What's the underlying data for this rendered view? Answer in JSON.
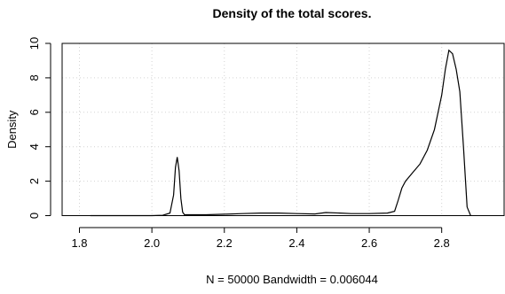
{
  "chart_data": {
    "type": "line",
    "title": "Density of the total scores.",
    "xlabel": "N = 50000   Bandwidth = 0.006044",
    "ylabel": "Density",
    "xlim": [
      1.8,
      2.9
    ],
    "ylim": [
      0,
      10
    ],
    "xticks": [
      "1.8",
      "2.0",
      "2.2",
      "2.4",
      "2.6",
      "2.8"
    ],
    "xtick_values": [
      1.8,
      2.0,
      2.2,
      2.4,
      2.6,
      2.8
    ],
    "yticks": [
      "0",
      "2",
      "4",
      "6",
      "8",
      "10"
    ],
    "ytick_values": [
      0,
      2,
      4,
      6,
      8,
      10
    ],
    "grid": true,
    "series": [
      {
        "x": [
          1.83,
          1.9,
          1.95,
          2.0,
          2.03,
          2.05,
          2.06,
          2.065,
          2.07,
          2.075,
          2.08,
          2.085,
          2.09,
          2.1,
          2.15,
          2.2,
          2.25,
          2.3,
          2.35,
          2.4,
          2.45,
          2.48,
          2.52,
          2.55,
          2.6,
          2.65,
          2.67,
          2.68,
          2.69,
          2.7,
          2.72,
          2.74,
          2.76,
          2.78,
          2.8,
          2.81,
          2.82,
          2.83,
          2.84,
          2.85,
          2.86,
          2.87,
          2.88
        ],
        "y": [
          0.0,
          0.0,
          0.0,
          0.0,
          0.02,
          0.15,
          1.2,
          2.8,
          3.4,
          2.6,
          1.0,
          0.2,
          0.05,
          0.05,
          0.05,
          0.08,
          0.12,
          0.15,
          0.15,
          0.12,
          0.1,
          0.18,
          0.15,
          0.12,
          0.12,
          0.15,
          0.25,
          0.9,
          1.6,
          2.0,
          2.5,
          3.0,
          3.8,
          5.0,
          7.0,
          8.5,
          9.6,
          9.4,
          8.5,
          7.2,
          4.0,
          0.5,
          0.0
        ]
      }
    ]
  }
}
